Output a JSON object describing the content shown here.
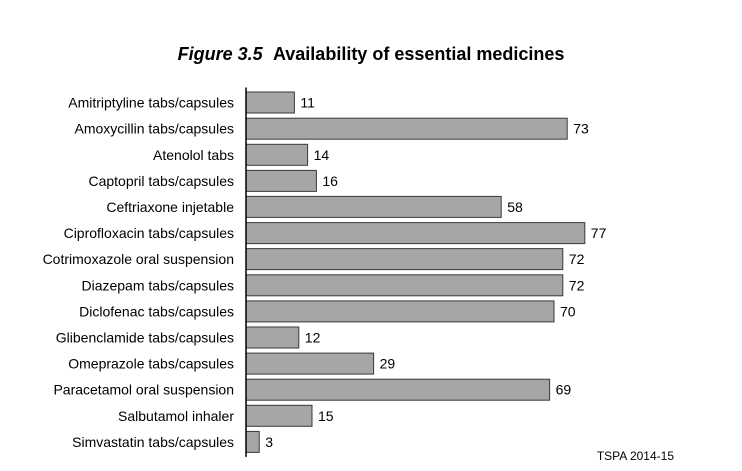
{
  "title": {
    "figure_label": "Figure 3.5",
    "text": "Availability of essential medicines"
  },
  "source": "TSPA 2014-15",
  "colors": {
    "bar_fill": "#a6a6a8",
    "bar_stroke": "#3a3a3a",
    "axis": "#000000",
    "text": "#000000"
  },
  "chart_data": {
    "type": "bar",
    "orientation": "horizontal",
    "categories": [
      "Amitriptyline tabs/capsules",
      "Amoxycillin tabs/capsules",
      "Atenolol tabs",
      "Captopril tabs/capsules",
      "Ceftriaxone injetable",
      "Ciprofloxacin tabs/capsules",
      "Cotrimoxazole oral suspension",
      "Diazepam tabs/capsules",
      "Diclofenac tabs/capsules",
      "Glibenclamide tabs/capsules",
      "Omeprazole tabs/capsules",
      "Paracetamol oral suspension",
      "Salbutamol inhaler",
      "Simvastatin tabs/capsules"
    ],
    "values": [
      11,
      73,
      14,
      16,
      58,
      77,
      72,
      72,
      70,
      12,
      29,
      69,
      15,
      3
    ],
    "data_labels": [
      "11",
      "73",
      "14",
      "16",
      "58",
      "77",
      "72",
      "72",
      "70",
      "12",
      "29",
      "69",
      "15",
      "3"
    ],
    "title": "Availability of essential medicines",
    "xlabel": "",
    "ylabel": "",
    "xlim": [
      0,
      78
    ],
    "grid": false,
    "legend": "none"
  }
}
